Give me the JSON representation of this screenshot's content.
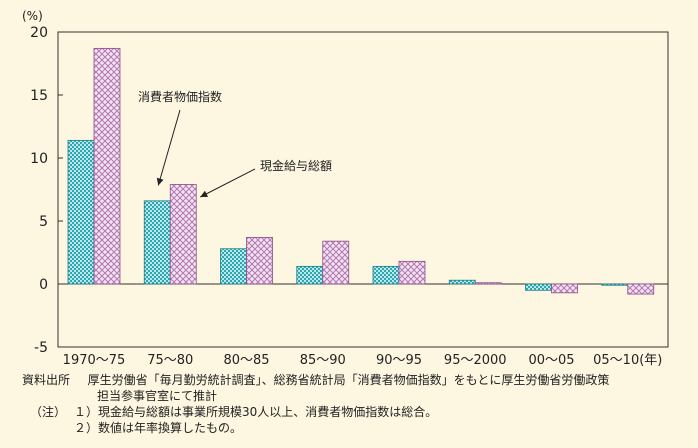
{
  "chart_data": {
    "type": "bar",
    "title": "",
    "ylabel": "(%)",
    "xlabel": "",
    "ylim": [
      -5,
      20
    ],
    "yticks": [
      -5,
      0,
      5,
      10,
      15,
      20
    ],
    "categories": [
      "1970～75",
      "75～80",
      "80～85",
      "85～90",
      "90～95",
      "95～2000",
      "00～05",
      "05～10(年)"
    ],
    "series": [
      {
        "name": "現金給与総額",
        "values": [
          11.4,
          6.6,
          2.8,
          1.4,
          1.4,
          0.3,
          -0.5,
          -0.1
        ]
      },
      {
        "name": "消費者物価指数",
        "values": [
          18.7,
          7.9,
          3.7,
          3.4,
          1.8,
          0.1,
          -0.7,
          -0.8
        ]
      }
    ],
    "annotations": [
      {
        "text": "消費者物価指数",
        "series": 1,
        "category": 1
      },
      {
        "text": "現金給与総額",
        "series": 0,
        "category": 1
      }
    ],
    "grid": false,
    "colors": {
      "series0": "#2aa7b0",
      "series1": "#cc99cc"
    }
  },
  "notes": {
    "source_label": "資料出所",
    "source_line1": "厚生労働省「毎月勤労統計調査」、総務省統計局「消費者物価指数」をもとに厚生労働省労働政策",
    "source_line2": "担当参事官室にて推計",
    "note_label": "（注）",
    "note1": "１）現金給与総額は事業所規模30人以上、消費者物価指数は総合。",
    "note2": "２）数値は年率換算したもの。"
  }
}
